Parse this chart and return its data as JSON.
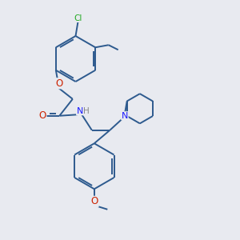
{
  "bg_color": "#e8eaf0",
  "bond_color": "#2d5a8e",
  "atom_colors": {
    "O": "#cc2200",
    "N": "#1a1aff",
    "Cl": "#22aa22",
    "H": "#888888"
  },
  "lw": 1.4,
  "dbo": 0.08
}
